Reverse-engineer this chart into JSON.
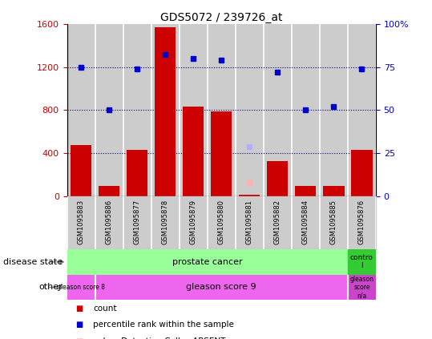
{
  "title": "GDS5072 / 239726_at",
  "samples": [
    "GSM1095883",
    "GSM1095886",
    "GSM1095877",
    "GSM1095878",
    "GSM1095879",
    "GSM1095880",
    "GSM1095881",
    "GSM1095882",
    "GSM1095884",
    "GSM1095885",
    "GSM1095876"
  ],
  "counts": [
    480,
    100,
    430,
    1570,
    830,
    790,
    20,
    330,
    100,
    100,
    430
  ],
  "percentile_ranks": [
    75,
    50,
    74,
    82,
    80,
    79,
    null,
    72,
    50,
    52,
    74
  ],
  "absent_value_idx": 6,
  "absent_value": 130,
  "absent_rank": 29,
  "count_color": "#cc0000",
  "rank_color": "#0000cc",
  "absent_value_color": "#ffb0b0",
  "absent_rank_color": "#b0b0ff",
  "bar_bg_color": "#cccccc",
  "ylim_left": [
    0,
    1600
  ],
  "ylim_right": [
    0,
    100
  ],
  "yticks_left": [
    0,
    400,
    800,
    1200,
    1600
  ],
  "yticks_right": [
    0,
    25,
    50,
    75,
    100
  ],
  "yticklabels_right": [
    "0",
    "25",
    "50",
    "75",
    "100%"
  ],
  "disease_state_color_main": "#99ff99",
  "disease_state_color_ctrl": "#33cc33",
  "other_color_gs8": "#ee66ee",
  "other_color_gs9": "#ee66ee",
  "other_color_na": "#cc44cc",
  "panel_bg": "#cccccc",
  "white": "#ffffff",
  "dotline_color": "#000080",
  "dotline_vals": [
    400,
    800,
    1200
  ]
}
